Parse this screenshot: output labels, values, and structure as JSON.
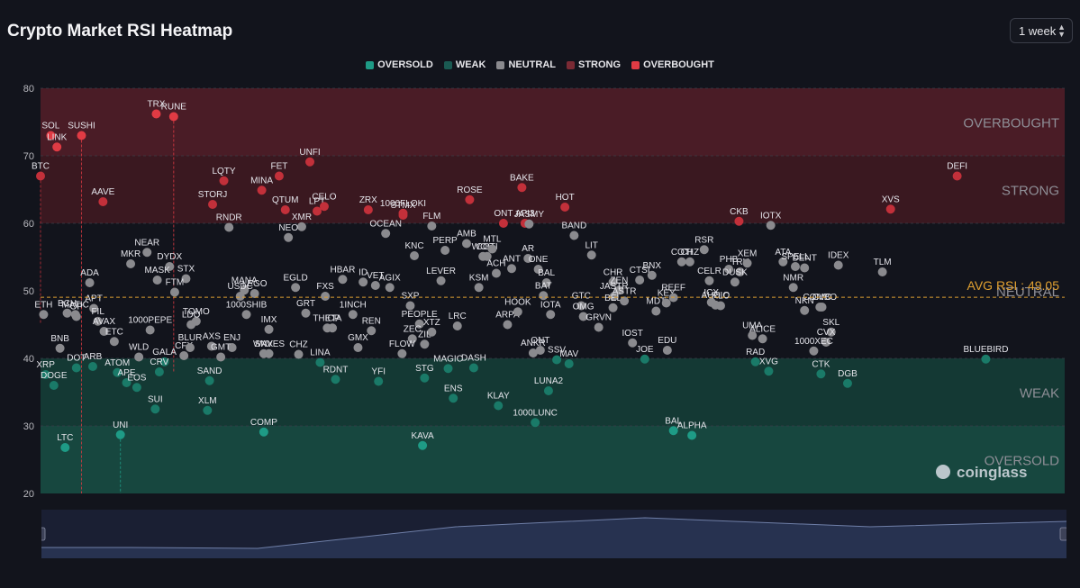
{
  "title": "Crypto Market RSI Heatmap",
  "period": {
    "selected": "1 week"
  },
  "legend": [
    {
      "label": "OVERSOLD",
      "color": "#1e9b86"
    },
    {
      "label": "WEAK",
      "color": "#1a5a52"
    },
    {
      "label": "NEUTRAL",
      "color": "#8a8a8e"
    },
    {
      "label": "STRONG",
      "color": "#7a2a34"
    },
    {
      "label": "OVERBOUGHT",
      "color": "#e03b44"
    }
  ],
  "watermark": "coinglass",
  "chart_data": {
    "type": "scatter",
    "ylim": [
      20,
      80
    ],
    "yticks": [
      20,
      30,
      40,
      50,
      60,
      70,
      80
    ],
    "xlim": [
      0,
      100
    ],
    "zones": [
      {
        "label": "OVERBOUGHT",
        "from": 70,
        "to": 80,
        "color": "#4a1c26"
      },
      {
        "label": "STRONG",
        "from": 60,
        "to": 70,
        "color": "#3a1820"
      },
      {
        "label": "NEUTRAL",
        "from": 40,
        "to": 60,
        "color": "#12141c"
      },
      {
        "label": "WEAK",
        "from": 30,
        "to": 40,
        "color": "#143934"
      },
      {
        "label": "OVERSOLD",
        "from": 20,
        "to": 30,
        "color": "#17473f"
      }
    ],
    "avg_rsi": {
      "label": "AVG RSI : 49.05",
      "value": 49.05
    },
    "colors": {
      "oversold": "#1e9b86",
      "weak": "#1a7a68",
      "neutral": "#8a8a8e",
      "strong": "#c2303a",
      "overbought": "#e03b44"
    },
    "points": [
      {
        "name": "BTC",
        "x": 0,
        "y": 67,
        "tail": 45
      },
      {
        "name": "SOL",
        "x": 1,
        "y": 73
      },
      {
        "name": "LINK",
        "x": 1.6,
        "y": 71.3
      },
      {
        "name": "ETH",
        "x": 0.3,
        "y": 46.5
      },
      {
        "name": "BCH",
        "x": 2.6,
        "y": 46.7
      },
      {
        "name": "MATIC",
        "x": 3.4,
        "y": 46.5
      },
      {
        "name": "OP",
        "x": 3.5,
        "y": 46.2
      },
      {
        "name": "SUSHI",
        "x": 4,
        "y": 73,
        "tail": 20
      },
      {
        "name": "ADA",
        "x": 4.8,
        "y": 51.2
      },
      {
        "name": "APT",
        "x": 5.2,
        "y": 47.4
      },
      {
        "name": "FIL",
        "x": 5.6,
        "y": 45.5
      },
      {
        "name": "AVAX",
        "x": 6.2,
        "y": 44
      },
      {
        "name": "BNB",
        "x": 1.9,
        "y": 41.5
      },
      {
        "name": "XRP",
        "x": 0.5,
        "y": 37.6
      },
      {
        "name": "DOGE",
        "x": 1.3,
        "y": 36
      },
      {
        "name": "DOT",
        "x": 3.5,
        "y": 38.6
      },
      {
        "name": "ARB",
        "x": 5.1,
        "y": 38.8
      },
      {
        "name": "ETC",
        "x": 7.2,
        "y": 42.5
      },
      {
        "name": "ATOM",
        "x": 7.5,
        "y": 37.9
      },
      {
        "name": "APE",
        "x": 8.4,
        "y": 36.4
      },
      {
        "name": "EOS",
        "x": 9.4,
        "y": 35.7
      },
      {
        "name": "LTC",
        "x": 2.4,
        "y": 26.8
      },
      {
        "name": "UNI",
        "x": 7.8,
        "y": 28.7,
        "tail": 20
      },
      {
        "name": "AAVE",
        "x": 6.1,
        "y": 63.2
      },
      {
        "name": "MKR",
        "x": 8.8,
        "y": 54
      },
      {
        "name": "NEAR",
        "x": 10.4,
        "y": 55.7
      },
      {
        "name": "DYDX",
        "x": 12.6,
        "y": 53.6
      },
      {
        "name": "MASK",
        "x": 11.4,
        "y": 51.6
      },
      {
        "name": "STX",
        "x": 14.2,
        "y": 51.8
      },
      {
        "name": "FTM",
        "x": 13.1,
        "y": 49.8
      },
      {
        "name": "1000PEPE",
        "x": 10.7,
        "y": 44.2
      },
      {
        "name": "WLD",
        "x": 9.6,
        "y": 40.2
      },
      {
        "name": "GALA",
        "x": 12.1,
        "y": 39.5
      },
      {
        "name": "CRV",
        "x": 11.6,
        "y": 38
      },
      {
        "name": "CFX",
        "x": 14,
        "y": 40.4
      },
      {
        "name": "SUI",
        "x": 11.2,
        "y": 32.5
      },
      {
        "name": "TRX",
        "x": 11.3,
        "y": 76.2
      },
      {
        "name": "RUNE",
        "x": 13,
        "y": 75.8,
        "tail": 38
      },
      {
        "name": "TOMO",
        "x": 15.2,
        "y": 45.5
      },
      {
        "name": "LDO",
        "x": 14.7,
        "y": 45
      },
      {
        "name": "BLUR",
        "x": 14.6,
        "y": 41.6
      },
      {
        "name": "AXS",
        "x": 16.7,
        "y": 41.8
      },
      {
        "name": "ENJ",
        "x": 18.7,
        "y": 41.6
      },
      {
        "name": "GMT",
        "x": 17.6,
        "y": 40.2
      },
      {
        "name": "SAND",
        "x": 16.5,
        "y": 36.7
      },
      {
        "name": "XLM",
        "x": 16.3,
        "y": 32.3
      },
      {
        "name": "STORJ",
        "x": 16.8,
        "y": 62.8
      },
      {
        "name": "LQTY",
        "x": 17.9,
        "y": 66.3
      },
      {
        "name": "RNDR",
        "x": 18.4,
        "y": 59.4
      },
      {
        "name": "MINA",
        "x": 21.6,
        "y": 64.9
      },
      {
        "name": "FET",
        "x": 23.3,
        "y": 67
      },
      {
        "name": "MANA",
        "x": 19.9,
        "y": 50.1
      },
      {
        "name": "USDC",
        "x": 19.5,
        "y": 49.2
      },
      {
        "name": "LEGO",
        "x": 20.9,
        "y": 49.6
      },
      {
        "name": "1000SHIB",
        "x": 20.1,
        "y": 46.5
      },
      {
        "name": "IMX",
        "x": 22.3,
        "y": 44.3
      },
      {
        "name": "SNX",
        "x": 21.8,
        "y": 40.7
      },
      {
        "name": "WAVES",
        "x": 22.3,
        "y": 40.7
      },
      {
        "name": "COMP",
        "x": 21.8,
        "y": 29.1
      },
      {
        "name": "QTUM",
        "x": 23.9,
        "y": 62
      },
      {
        "name": "XMR",
        "x": 25.5,
        "y": 59.5
      },
      {
        "name": "NEO",
        "x": 24.2,
        "y": 57.9
      },
      {
        "name": "UNFI",
        "x": 26.3,
        "y": 69.1
      },
      {
        "name": "LPT",
        "x": 27,
        "y": 61.8
      },
      {
        "name": "CELO",
        "x": 27.7,
        "y": 62.5
      },
      {
        "name": "EGLD",
        "x": 24.9,
        "y": 50.5
      },
      {
        "name": "GRT",
        "x": 25.9,
        "y": 46.7
      },
      {
        "name": "CHZ",
        "x": 25.2,
        "y": 40.6
      },
      {
        "name": "FXS",
        "x": 27.8,
        "y": 49.2
      },
      {
        "name": "THETA",
        "x": 28,
        "y": 44.5
      },
      {
        "name": "ICP",
        "x": 28.5,
        "y": 44.5
      },
      {
        "name": "LINA",
        "x": 27.3,
        "y": 39.4
      },
      {
        "name": "RDNT",
        "x": 28.8,
        "y": 36.9
      },
      {
        "name": "HBAR",
        "x": 29.5,
        "y": 51.7
      },
      {
        "name": "1INCH",
        "x": 30.5,
        "y": 46.5
      },
      {
        "name": "GMX",
        "x": 31,
        "y": 41.6
      },
      {
        "name": "ZRX",
        "x": 32,
        "y": 62
      },
      {
        "name": "ID",
        "x": 31.5,
        "y": 51.3
      },
      {
        "name": "VET",
        "x": 32.7,
        "y": 50.8
      },
      {
        "name": "AGIX",
        "x": 34.1,
        "y": 50.5
      },
      {
        "name": "REN",
        "x": 32.3,
        "y": 44.1
      },
      {
        "name": "YFI",
        "x": 33,
        "y": 36.6
      },
      {
        "name": "OCEAN",
        "x": 33.7,
        "y": 58.5
      },
      {
        "name": "1000FLOKI",
        "x": 35.4,
        "y": 61.5
      },
      {
        "name": "STMX",
        "x": 35.4,
        "y": 61.2
      },
      {
        "name": "KNC",
        "x": 36.5,
        "y": 55.2
      },
      {
        "name": "SXP",
        "x": 36.1,
        "y": 47.8
      },
      {
        "name": "PEOPLE",
        "x": 37,
        "y": 45.1
      },
      {
        "name": "ZEC",
        "x": 36.3,
        "y": 42.9
      },
      {
        "name": "FLOW",
        "x": 35.3,
        "y": 40.7
      },
      {
        "name": "XTZ",
        "x": 38.2,
        "y": 43.9
      },
      {
        "name": "ZIL",
        "x": 37.5,
        "y": 42.1
      },
      {
        "name": "STG",
        "x": 37.5,
        "y": 37.1
      },
      {
        "name": "KAVA",
        "x": 37.3,
        "y": 27.1
      },
      {
        "name": "FLM",
        "x": 38.2,
        "y": 59.6
      },
      {
        "name": "PERP",
        "x": 39.5,
        "y": 56
      },
      {
        "name": "LEVER",
        "x": 39.1,
        "y": 51.5
      },
      {
        "name": "LRC",
        "x": 40.7,
        "y": 44.8
      },
      {
        "name": "MAGIC",
        "x": 39.8,
        "y": 38.5
      },
      {
        "name": "ENS",
        "x": 40.3,
        "y": 34.1
      },
      {
        "name": "DASH",
        "x": 42.3,
        "y": 38.6
      },
      {
        "name": "ROSE",
        "x": 41.9,
        "y": 63.5
      },
      {
        "name": "AMB",
        "x": 41.6,
        "y": 57
      },
      {
        "name": "WOO",
        "x": 43.2,
        "y": 55.1
      },
      {
        "name": "COTI",
        "x": 43.6,
        "y": 55.1
      },
      {
        "name": "MTL",
        "x": 44.1,
        "y": 56.2
      },
      {
        "name": "KSM",
        "x": 42.8,
        "y": 50.5
      },
      {
        "name": "ACH",
        "x": 44.5,
        "y": 52.6
      },
      {
        "name": "ANT",
        "x": 46,
        "y": 53.3
      },
      {
        "name": "ONT",
        "x": 45.2,
        "y": 60
      },
      {
        "name": "ARPA",
        "x": 45.6,
        "y": 45
      },
      {
        "name": "HOOK",
        "x": 46.6,
        "y": 46.9
      },
      {
        "name": "KLAY",
        "x": 44.7,
        "y": 33
      },
      {
        "name": "1000LUNC",
        "x": 48.3,
        "y": 30.5
      },
      {
        "name": "BAKE",
        "x": 47,
        "y": 65.3
      },
      {
        "name": "API3",
        "x": 47.3,
        "y": 60
      },
      {
        "name": "JASMY",
        "x": 47.7,
        "y": 59.9
      },
      {
        "name": "AR",
        "x": 47.6,
        "y": 54.8
      },
      {
        "name": "ONE",
        "x": 48.6,
        "y": 53.2
      },
      {
        "name": "BAL",
        "x": 49.4,
        "y": 51.2
      },
      {
        "name": "IOTA",
        "x": 49.8,
        "y": 46.5
      },
      {
        "name": "BAT",
        "x": 49.1,
        "y": 49.3
      },
      {
        "name": "ANKR",
        "x": 48.1,
        "y": 40.8
      },
      {
        "name": "ONT",
        "x": 48.8,
        "y": 41.2
      },
      {
        "name": "SSV",
        "x": 50.4,
        "y": 39.8
      },
      {
        "name": "LUNA2",
        "x": 49.6,
        "y": 35.2
      },
      {
        "name": "MAV",
        "x": 51.6,
        "y": 39.2
      },
      {
        "name": "HOT",
        "x": 51.2,
        "y": 62.4
      },
      {
        "name": "BAND",
        "x": 52.1,
        "y": 58.2
      },
      {
        "name": "GTC",
        "x": 52.8,
        "y": 47.8
      },
      {
        "name": "OMG",
        "x": 53,
        "y": 46.2
      },
      {
        "name": "LIT",
        "x": 53.8,
        "y": 55.3
      },
      {
        "name": "GRVN",
        "x": 54.5,
        "y": 44.6
      },
      {
        "name": "CHR",
        "x": 55.9,
        "y": 51.3
      },
      {
        "name": "ZEN",
        "x": 56.5,
        "y": 50.1
      },
      {
        "name": "JASTR",
        "x": 56,
        "y": 49.2
      },
      {
        "name": "BEL",
        "x": 55.9,
        "y": 47.5
      },
      {
        "name": "ASTR",
        "x": 57,
        "y": 48.5
      },
      {
        "name": "CTSI",
        "x": 58.5,
        "y": 51.6
      },
      {
        "name": "BNX",
        "x": 59.7,
        "y": 52.3
      },
      {
        "name": "MDT",
        "x": 60.1,
        "y": 47
      },
      {
        "name": "IOST",
        "x": 57.8,
        "y": 42.3
      },
      {
        "name": "JOE",
        "x": 59,
        "y": 39.9
      },
      {
        "name": "KEY",
        "x": 61.1,
        "y": 48.2
      },
      {
        "name": "REEF",
        "x": 61.8,
        "y": 49
      },
      {
        "name": "EDU",
        "x": 61.2,
        "y": 41.2
      },
      {
        "name": "BAL",
        "x": 61.8,
        "y": 29.3
      },
      {
        "name": "ALPHA",
        "x": 63.6,
        "y": 28.6
      },
      {
        "name": "COTI",
        "x": 62.6,
        "y": 54.3
      },
      {
        "name": "CHZ",
        "x": 63.4,
        "y": 54.3
      },
      {
        "name": "RSR",
        "x": 64.8,
        "y": 56.1
      },
      {
        "name": "CELR",
        "x": 65.3,
        "y": 51.5
      },
      {
        "name": "ICX",
        "x": 65.5,
        "y": 48.3
      },
      {
        "name": "AUDIO",
        "x": 65.9,
        "y": 47.9
      },
      {
        "name": "RLC",
        "x": 66.4,
        "y": 47.8
      },
      {
        "name": "PHB",
        "x": 67.2,
        "y": 53.2
      },
      {
        "name": "TRU",
        "x": 68.3,
        "y": 52.8
      },
      {
        "name": "DUSK",
        "x": 67.8,
        "y": 51.3
      },
      {
        "name": "CKB",
        "x": 68.2,
        "y": 60.3
      },
      {
        "name": "XEM",
        "x": 69,
        "y": 54.1
      },
      {
        "name": "IOTX",
        "x": 71.3,
        "y": 59.7
      },
      {
        "name": "UMA",
        "x": 69.5,
        "y": 43.4
      },
      {
        "name": "ALICE",
        "x": 70.5,
        "y": 42.9
      },
      {
        "name": "RAD",
        "x": 69.8,
        "y": 39.5
      },
      {
        "name": "XVG",
        "x": 71.1,
        "y": 38.1
      },
      {
        "name": "ATA",
        "x": 72.5,
        "y": 54.3
      },
      {
        "name": "SPELL",
        "x": 73.7,
        "y": 53.6
      },
      {
        "name": "DENT",
        "x": 74.6,
        "y": 53.4
      },
      {
        "name": "NMR",
        "x": 73.5,
        "y": 50.5
      },
      {
        "name": "NKN",
        "x": 74.6,
        "y": 47.1
      },
      {
        "name": "COMBO",
        "x": 76.1,
        "y": 47.6
      },
      {
        "name": "CVC",
        "x": 76.3,
        "y": 47.6
      },
      {
        "name": "IDEX",
        "x": 77.9,
        "y": 53.8
      },
      {
        "name": "SKL",
        "x": 77.2,
        "y": 43.9
      },
      {
        "name": "CVX",
        "x": 76.7,
        "y": 42.4
      },
      {
        "name": "1000XEC",
        "x": 75.5,
        "y": 41.1
      },
      {
        "name": "CTK",
        "x": 76.2,
        "y": 37.7
      },
      {
        "name": "DGB",
        "x": 78.8,
        "y": 36.3
      },
      {
        "name": "TLM",
        "x": 82.2,
        "y": 52.8
      },
      {
        "name": "XVS",
        "x": 83,
        "y": 62.1
      },
      {
        "name": "DEFI",
        "x": 89.5,
        "y": 67
      },
      {
        "name": "BLUEBIRD",
        "x": 92.3,
        "y": 39.9
      }
    ]
  }
}
